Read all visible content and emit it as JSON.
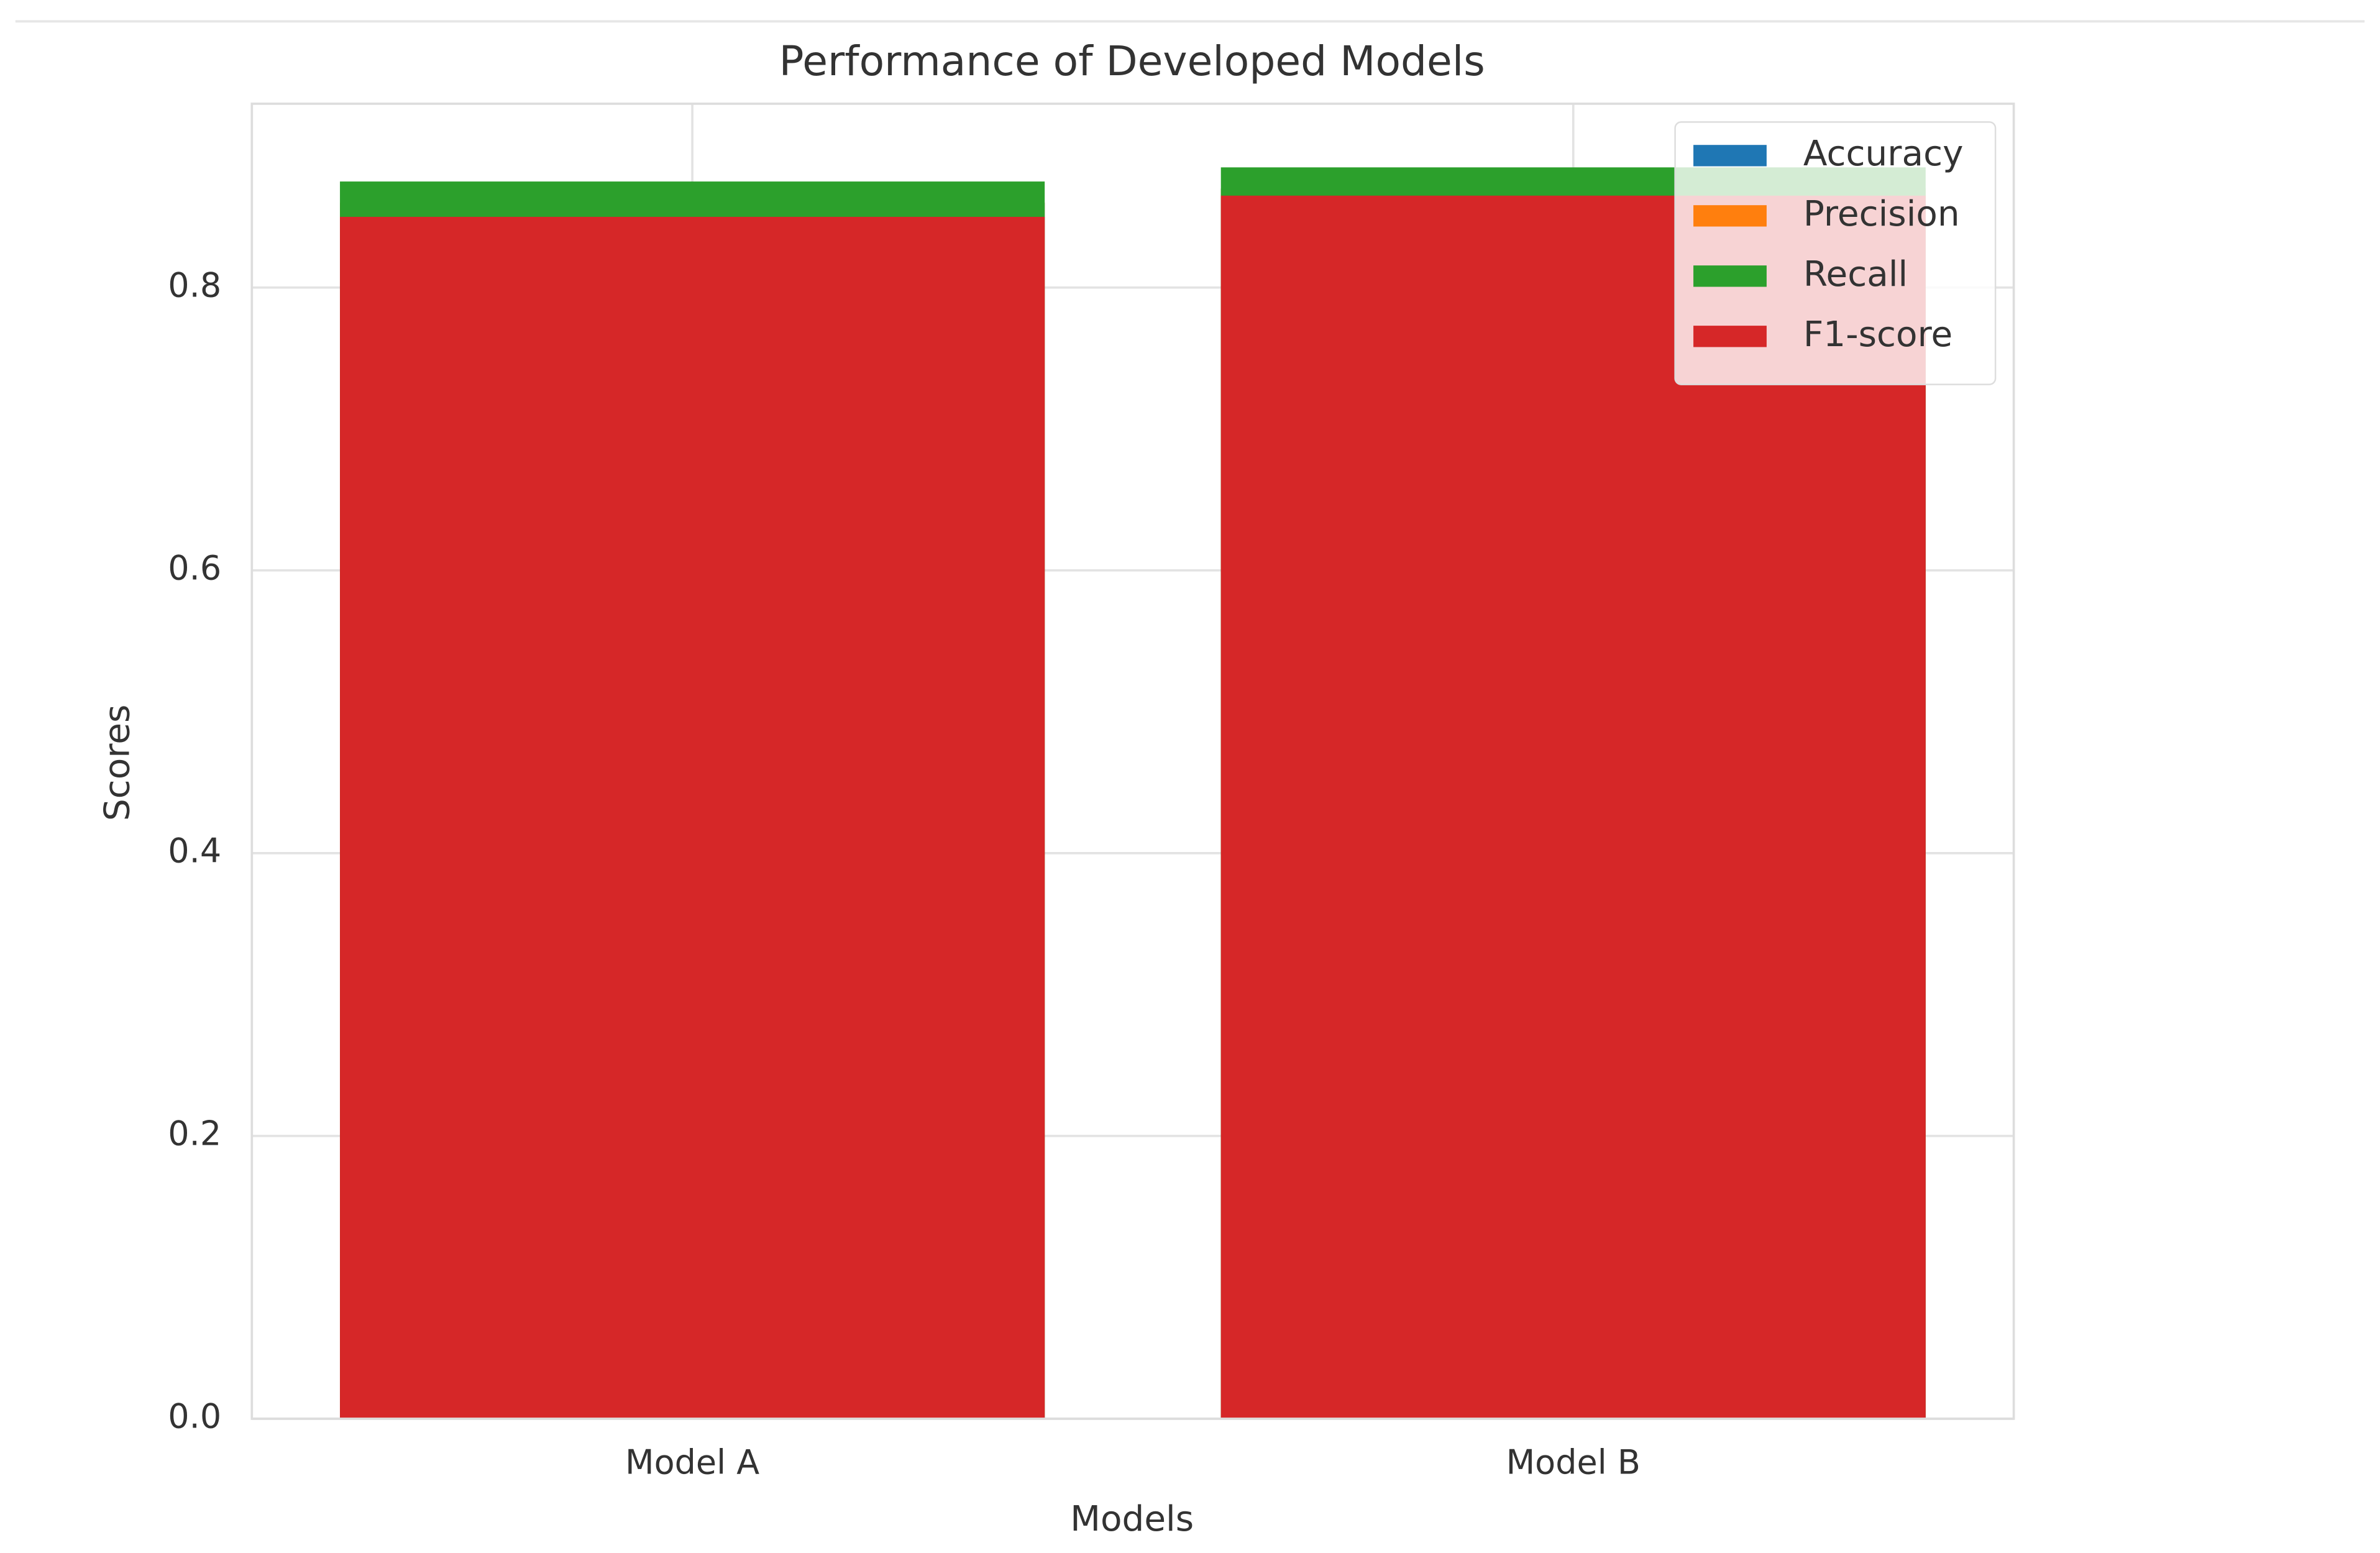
{
  "chart_data": {
    "type": "bar",
    "bar_mode": "overlay",
    "title": "Performance of Developed Models",
    "x_label": "Models",
    "y_label": "Scores",
    "categories": [
      "Model A",
      "Model B"
    ],
    "series": [
      {
        "name": "Accuracy",
        "color": "#1f77b4",
        "values": [
          0.86,
          0.87
        ]
      },
      {
        "name": "Precision",
        "color": "#ff7f0e",
        "values": [
          0.86,
          0.87
        ]
      },
      {
        "name": "Recall",
        "color": "#2ca02c",
        "values": [
          0.875,
          0.885
        ]
      },
      {
        "name": "F1-score",
        "color": "#d62728",
        "values": [
          0.85,
          0.865
        ]
      }
    ],
    "ylim": [
      0,
      0.93
    ],
    "yticks": [
      {
        "value": 0,
        "label": "0.0"
      },
      0.2,
      0.4,
      0.6,
      0.8
    ],
    "grid": true,
    "legend": "upper right"
  }
}
